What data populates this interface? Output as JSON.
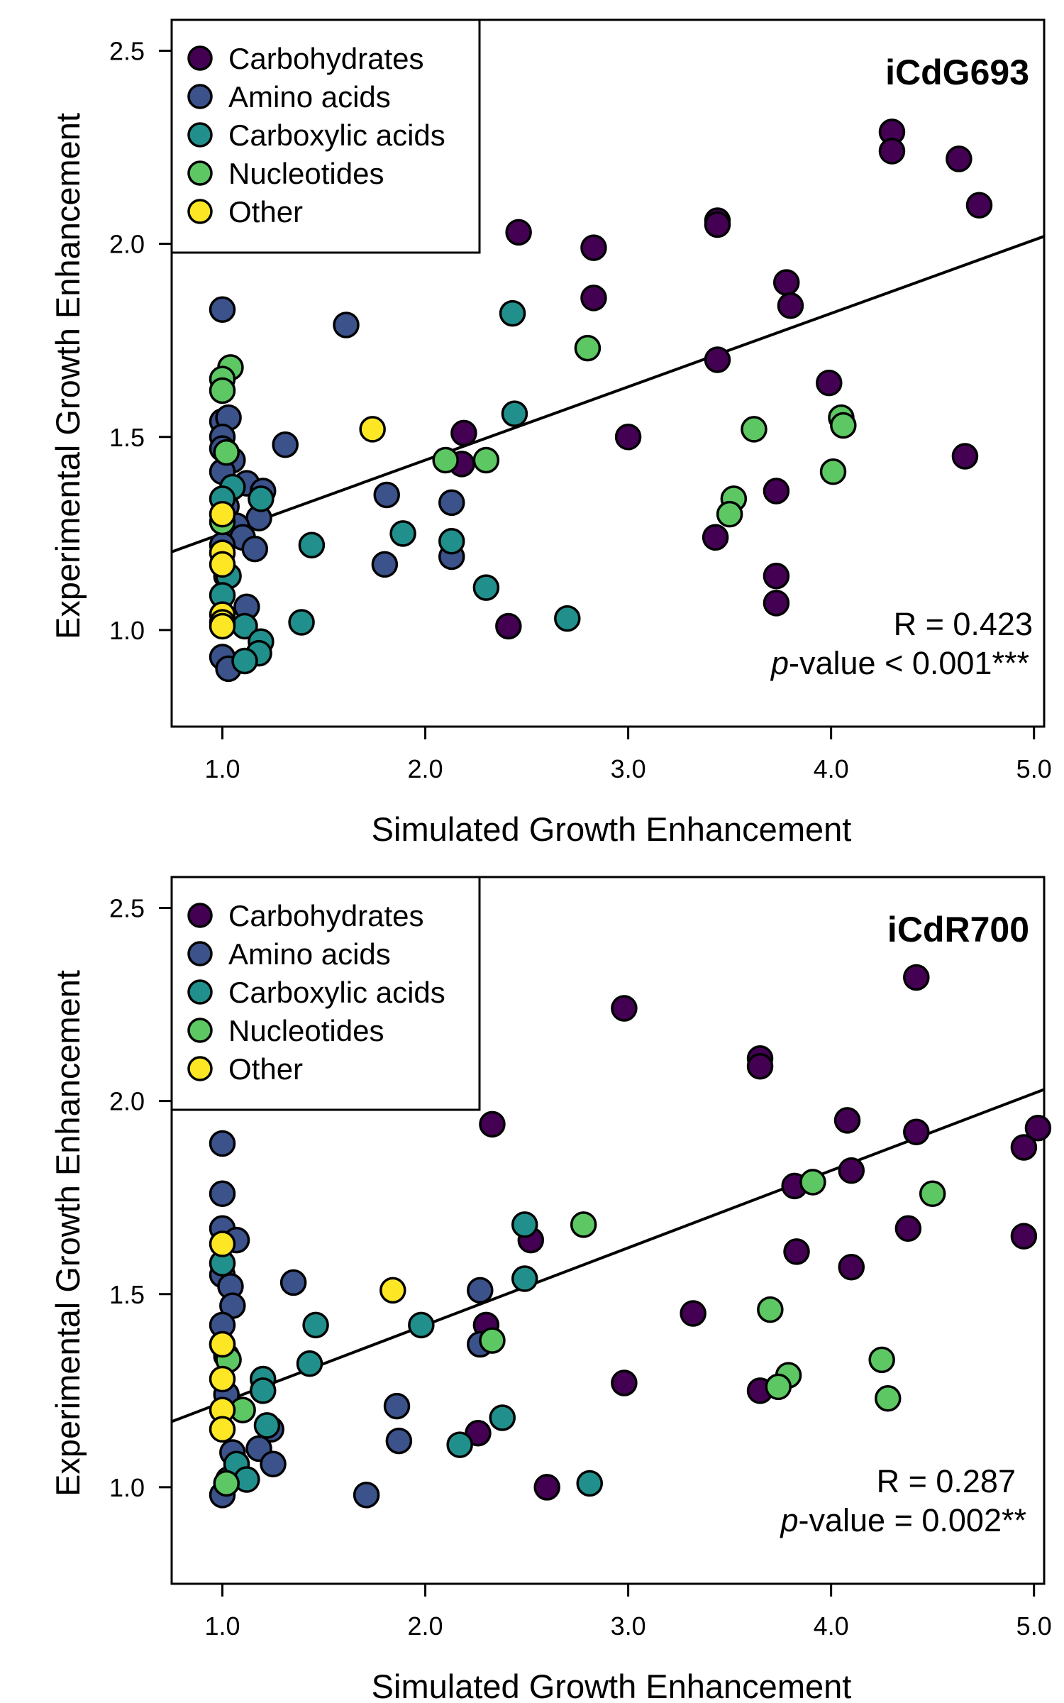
{
  "colors": {
    "Carbohydrates": "#440154",
    "Amino acids": "#3b528b",
    "Carboxylic acids": "#21908c",
    "Nucleotides": "#5dc863",
    "Other": "#fde725"
  },
  "legend": [
    "Carbohydrates",
    "Amino acids",
    "Carboxylic acids",
    "Nucleotides",
    "Other"
  ],
  "chart_data": [
    {
      "type": "scatter",
      "title": "iCdG693",
      "xlabel": "Simulated Growth Enhancement",
      "ylabel": "Experimental Growth Enhancement",
      "xlim": [
        0.75,
        5.05
      ],
      "ylim": [
        0.75,
        2.58
      ],
      "xticks": [
        "1.0",
        "2.0",
        "3.0",
        "4.0",
        "5.0"
      ],
      "yticks": [
        "1.0",
        "1.5",
        "2.0",
        "2.5"
      ],
      "stat_r": "R = 0.423",
      "stat_p_prefix": "p",
      "stat_p_rest": "-value < 0.001***",
      "trend_line": {
        "slope": 0.19,
        "intercept": 1.06
      },
      "series": [
        {
          "name": "Carbohydrates",
          "x": [
            4.3,
            4.3,
            4.63,
            4.73,
            2.46,
            3.44,
            3.44,
            2.83,
            3.78,
            3.8,
            2.83,
            3.44,
            3.99,
            2.19,
            2.18,
            3.0,
            4.66,
            3.73,
            3.43,
            3.73,
            3.73,
            2.41
          ],
          "y": [
            2.29,
            2.24,
            2.22,
            2.1,
            2.03,
            2.06,
            2.05,
            1.99,
            1.9,
            1.84,
            1.86,
            1.7,
            1.64,
            1.51,
            1.43,
            1.5,
            1.45,
            1.36,
            1.24,
            1.14,
            1.07,
            1.01
          ]
        },
        {
          "name": "Amino acids",
          "x": [
            1.0,
            1.61,
            1.0,
            1.03,
            1.0,
            1.0,
            1.31,
            1.05,
            1.0,
            1.12,
            1.2,
            1.02,
            1.81,
            2.13,
            1.18,
            1.07,
            1.1,
            1.0,
            1.8,
            2.13,
            1.16,
            1.02,
            1.12,
            1.0,
            1.03
          ],
          "y": [
            1.83,
            1.79,
            1.54,
            1.55,
            1.5,
            1.47,
            1.48,
            1.44,
            1.41,
            1.38,
            1.36,
            1.32,
            1.35,
            1.33,
            1.29,
            1.27,
            1.24,
            1.22,
            1.17,
            1.19,
            1.21,
            1.14,
            1.06,
            0.93,
            0.9
          ]
        },
        {
          "name": "Carboxylic acids",
          "x": [
            2.43,
            2.44,
            1.05,
            1.0,
            1.19,
            1.89,
            2.13,
            1.44,
            1.03,
            2.3,
            1.0,
            2.7,
            1.39,
            1.11,
            1.19,
            1.18,
            1.11
          ],
          "y": [
            1.82,
            1.56,
            1.37,
            1.34,
            1.34,
            1.25,
            1.23,
            1.22,
            1.14,
            1.11,
            1.09,
            1.03,
            1.02,
            1.01,
            0.97,
            0.94,
            0.92
          ]
        },
        {
          "name": "Nucleotides",
          "x": [
            1.04,
            1.0,
            1.0,
            2.8,
            1.02,
            3.62,
            4.05,
            4.06,
            2.1,
            2.3,
            4.01,
            3.52,
            3.5,
            1.0
          ],
          "y": [
            1.68,
            1.65,
            1.62,
            1.73,
            1.46,
            1.52,
            1.55,
            1.53,
            1.44,
            1.44,
            1.41,
            1.34,
            1.3,
            1.28
          ]
        },
        {
          "name": "Other",
          "x": [
            1.74,
            1.0,
            1.0,
            1.0,
            1.0,
            1.0,
            1.0
          ],
          "y": [
            1.52,
            1.3,
            1.2,
            1.17,
            1.04,
            1.02,
            1.01
          ]
        }
      ]
    },
    {
      "type": "scatter",
      "title": "iCdR700",
      "xlabel": "Simulated Growth Enhancement",
      "ylabel": "Experimental Growth Enhancement",
      "xlim": [
        0.75,
        5.05
      ],
      "ylim": [
        0.75,
        2.58
      ],
      "xticks": [
        "1.0",
        "2.0",
        "3.0",
        "4.0",
        "5.0"
      ],
      "yticks": [
        "1.0",
        "1.5",
        "2.0",
        "2.5"
      ],
      "stat_r": "R = 0.287",
      "stat_p_prefix": "p",
      "stat_p_rest": "-value = 0.002**",
      "trend_line": {
        "slope": 0.2,
        "intercept": 1.02
      },
      "series": [
        {
          "name": "Carbohydrates",
          "x": [
            4.42,
            2.98,
            3.65,
            3.65,
            4.08,
            4.42,
            5.02,
            4.95,
            2.33,
            3.82,
            4.1,
            4.38,
            2.52,
            4.95,
            3.83,
            4.1,
            3.32,
            2.3,
            2.98,
            3.65,
            2.26,
            2.6
          ],
          "y": [
            2.32,
            2.24,
            2.11,
            2.09,
            1.95,
            1.92,
            1.93,
            1.88,
            1.94,
            1.78,
            1.82,
            1.67,
            1.64,
            1.65,
            1.61,
            1.57,
            1.45,
            1.42,
            1.27,
            1.25,
            1.14,
            1.0
          ]
        },
        {
          "name": "Amino acids",
          "x": [
            1.0,
            1.0,
            1.0,
            1.07,
            1.0,
            1.35,
            1.04,
            2.27,
            1.05,
            1.0,
            1.0,
            1.02,
            2.27,
            1.02,
            1.86,
            1.24,
            1.87,
            1.18,
            1.05,
            1.25,
            1.03,
            1.71,
            1.0
          ],
          "y": [
            1.89,
            1.76,
            1.67,
            1.64,
            1.55,
            1.53,
            1.52,
            1.51,
            1.47,
            1.42,
            1.37,
            1.34,
            1.37,
            1.24,
            1.21,
            1.15,
            1.12,
            1.1,
            1.09,
            1.06,
            1.02,
            0.98,
            0.98
          ]
        },
        {
          "name": "Carboxylic acids",
          "x": [
            2.49,
            1.0,
            2.49,
            1.98,
            1.46,
            1.43,
            1.2,
            1.2,
            1.22,
            2.38,
            2.17,
            1.07,
            2.81,
            1.12
          ],
          "y": [
            1.68,
            1.58,
            1.54,
            1.42,
            1.42,
            1.32,
            1.28,
            1.25,
            1.16,
            1.18,
            1.11,
            1.06,
            1.01,
            1.02
          ]
        },
        {
          "name": "Nucleotides",
          "x": [
            2.78,
            3.91,
            4.5,
            3.7,
            2.33,
            1.03,
            4.25,
            3.79,
            3.74,
            4.28,
            1.1,
            1.02
          ],
          "y": [
            1.68,
            1.79,
            1.76,
            1.46,
            1.38,
            1.33,
            1.33,
            1.29,
            1.26,
            1.23,
            1.2,
            1.01
          ]
        },
        {
          "name": "Other",
          "x": [
            1.84,
            1.0,
            1.0,
            1.0,
            1.0,
            1.0
          ],
          "y": [
            1.51,
            1.63,
            1.37,
            1.28,
            1.2,
            1.15
          ]
        }
      ]
    }
  ]
}
